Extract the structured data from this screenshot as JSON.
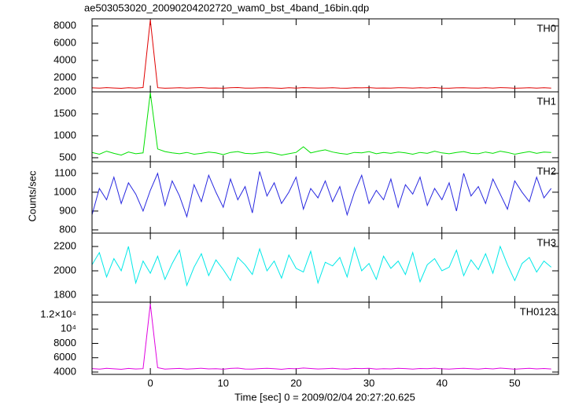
{
  "title": "ae503053020_20090204202720_wam0_bst_4band_16bin.qdp",
  "x_label": "Time [sec] 0 = 2009/02/04 20:27:20.625",
  "y_label": "Counts/sec",
  "chart_data": [
    {
      "type": "line",
      "xlim": [
        -8,
        56
      ],
      "xticks": [
        0,
        10,
        20,
        30,
        40,
        50
      ],
      "ylim": [
        360,
        8820
      ],
      "yticks": [
        2000,
        4000,
        6000,
        8000
      ],
      "x": [
        -8,
        -7,
        -6,
        -5,
        -4,
        -3,
        -2,
        -1,
        0,
        1,
        2,
        3,
        4,
        5,
        6,
        7,
        8,
        9,
        10,
        11,
        12,
        13,
        14,
        15,
        16,
        17,
        18,
        19,
        20,
        21,
        22,
        23,
        24,
        25,
        26,
        27,
        28,
        29,
        30,
        31,
        32,
        33,
        34,
        35,
        36,
        37,
        38,
        39,
        40,
        41,
        42,
        43,
        44,
        45,
        46,
        47,
        48,
        49,
        50,
        51,
        52,
        53,
        54,
        55
      ],
      "series": [
        {
          "name": "TH0",
          "color": "#e00000",
          "values": [
            820,
            790,
            850,
            810,
            770,
            830,
            800,
            860,
            8700,
            840,
            780,
            810,
            830,
            790,
            820,
            850,
            800,
            810,
            780,
            830,
            860,
            800,
            790,
            820,
            840,
            810,
            770,
            830,
            800,
            850,
            820,
            790,
            810,
            840,
            800,
            780,
            830,
            820,
            850,
            790,
            810,
            800,
            840,
            820,
            790,
            830,
            810,
            860,
            800,
            780,
            820,
            840,
            810,
            790,
            830,
            800,
            850,
            820,
            780,
            810,
            840,
            800,
            830,
            790
          ]
        }
      ]
    },
    {
      "type": "line",
      "xlim": [
        -8,
        56
      ],
      "xticks": [
        0,
        10,
        20,
        30,
        40,
        50
      ],
      "ylim": [
        410,
        2000
      ],
      "yticks": [
        500,
        1000,
        1500,
        2000
      ],
      "x": [
        -8,
        -7,
        -6,
        -5,
        -4,
        -3,
        -2,
        -1,
        0,
        1,
        2,
        3,
        4,
        5,
        6,
        7,
        8,
        9,
        10,
        11,
        12,
        13,
        14,
        15,
        16,
        17,
        18,
        19,
        20,
        21,
        22,
        23,
        24,
        25,
        26,
        27,
        28,
        29,
        30,
        31,
        32,
        33,
        34,
        35,
        36,
        37,
        38,
        39,
        40,
        41,
        42,
        43,
        44,
        45,
        46,
        47,
        48,
        49,
        50,
        51,
        52,
        53,
        54,
        55
      ],
      "series": [
        {
          "name": "TH1",
          "color": "#00e000",
          "values": [
            620,
            580,
            650,
            600,
            560,
            630,
            590,
            610,
            1980,
            700,
            640,
            610,
            590,
            620,
            580,
            600,
            630,
            610,
            570,
            620,
            640,
            600,
            590,
            610,
            630,
            600,
            560,
            590,
            620,
            750,
            610,
            650,
            680,
            630,
            600,
            580,
            620,
            610,
            640,
            590,
            620,
            600,
            630,
            610,
            580,
            620,
            600,
            650,
            610,
            590,
            620,
            640,
            600,
            590,
            630,
            600,
            650,
            620,
            580,
            610,
            640,
            600,
            630,
            620
          ]
        }
      ]
    },
    {
      "type": "line",
      "xlim": [
        -8,
        56
      ],
      "xticks": [
        0,
        10,
        20,
        30,
        40,
        50
      ],
      "ylim": [
        783,
        1162
      ],
      "yticks": [
        800,
        900,
        1000,
        1100
      ],
      "x": [
        -8,
        -7,
        -6,
        -5,
        -4,
        -3,
        -2,
        -1,
        0,
        1,
        2,
        3,
        4,
        5,
        6,
        7,
        8,
        9,
        10,
        11,
        12,
        13,
        14,
        15,
        16,
        17,
        18,
        19,
        20,
        21,
        22,
        23,
        24,
        25,
        26,
        27,
        28,
        29,
        30,
        31,
        32,
        33,
        34,
        35,
        36,
        37,
        38,
        39,
        40,
        41,
        42,
        43,
        44,
        45,
        46,
        47,
        48,
        49,
        50,
        51,
        52,
        53,
        54,
        55
      ],
      "series": [
        {
          "name": "TH2",
          "color": "#2828e0",
          "values": [
            880,
            1020,
            960,
            1080,
            940,
            1050,
            990,
            900,
            1010,
            1100,
            930,
            1060,
            980,
            870,
            1040,
            950,
            1090,
            1000,
            920,
            1070,
            960,
            1030,
            890,
            1110,
            980,
            1050,
            940,
            1000,
            1080,
            910,
            1020,
            970,
            1060,
            950,
            1030,
            880,
            1000,
            1090,
            940,
            1010,
            960,
            1070,
            920,
            1040,
            990,
            1080,
            930,
            1020,
            960,
            1050,
            900,
            1100,
            980,
            1030,
            940,
            1070,
            990,
            910,
            1060,
            1000,
            950,
            1080,
            970,
            1020
          ]
        }
      ]
    },
    {
      "type": "line",
      "xlim": [
        -8,
        56
      ],
      "xticks": [
        0,
        10,
        20,
        30,
        40,
        50
      ],
      "ylim": [
        1742,
        2310
      ],
      "yticks": [
        1800,
        2000,
        2200
      ],
      "x": [
        -8,
        -7,
        -6,
        -5,
        -4,
        -3,
        -2,
        -1,
        0,
        1,
        2,
        3,
        4,
        5,
        6,
        7,
        8,
        9,
        10,
        11,
        12,
        13,
        14,
        15,
        16,
        17,
        18,
        19,
        20,
        21,
        22,
        23,
        24,
        25,
        26,
        27,
        28,
        29,
        30,
        31,
        32,
        33,
        34,
        35,
        36,
        37,
        38,
        39,
        40,
        41,
        42,
        43,
        44,
        45,
        46,
        47,
        48,
        49,
        50,
        51,
        52,
        53,
        54,
        55
      ],
      "series": [
        {
          "name": "TH3",
          "color": "#00e8e8",
          "values": [
            2050,
            2150,
            1950,
            2100,
            2000,
            2200,
            1900,
            2080,
            1980,
            2120,
            1930,
            2060,
            2170,
            1880,
            2030,
            2140,
            1960,
            2090,
            2010,
            1920,
            2110,
            2050,
            1970,
            2180,
            2000,
            2080,
            1940,
            2130,
            2020,
            1990,
            2160,
            1900,
            2070,
            2040,
            2110,
            1950,
            2190,
            2000,
            2060,
            1930,
            2120,
            2020,
            2080,
            1970,
            2150,
            1910,
            2050,
            2100,
            2000,
            2030,
            2170,
            1960,
            2090,
            2010,
            2140,
            1980,
            2200,
            2050,
            1920,
            2060,
            2110,
            1990,
            2080,
            2030
          ]
        }
      ]
    },
    {
      "type": "line",
      "xlim": [
        -8,
        56
      ],
      "xticks": [
        0,
        10,
        20,
        30,
        40,
        50
      ],
      "ylim": [
        3671,
        13753
      ],
      "yticks": [
        4000,
        6000,
        8000,
        {
          "value": 10000,
          "label": "10⁴"
        },
        {
          "value": 12000,
          "label": "1.2×10⁴"
        }
      ],
      "x": [
        -8,
        -7,
        -6,
        -5,
        -4,
        -3,
        -2,
        -1,
        0,
        1,
        2,
        3,
        4,
        5,
        6,
        7,
        8,
        9,
        10,
        11,
        12,
        13,
        14,
        15,
        16,
        17,
        18,
        19,
        20,
        21,
        22,
        23,
        24,
        25,
        26,
        27,
        28,
        29,
        30,
        31,
        32,
        33,
        34,
        35,
        36,
        37,
        38,
        39,
        40,
        41,
        42,
        43,
        44,
        45,
        46,
        47,
        48,
        49,
        50,
        51,
        52,
        53,
        54,
        55
      ],
      "series": [
        {
          "name": "TH0123",
          "color": "#e000e0",
          "values": [
            4480,
            4400,
            4520,
            4450,
            4380,
            4500,
            4430,
            4470,
            13500,
            4600,
            4420,
            4460,
            4500,
            4410,
            4470,
            4530,
            4440,
            4460,
            4390,
            4500,
            4550,
            4430,
            4420,
            4480,
            4510,
            4460,
            4380,
            4490,
            4450,
            4560,
            4490,
            4430,
            4470,
            4520,
            4440,
            4400,
            4500,
            4480,
            4530,
            4410,
            4460,
            4440,
            4510,
            4480,
            4420,
            4490,
            4470,
            4540,
            4450,
            4400,
            4480,
            4510,
            4460,
            4420,
            4500,
            4440,
            4550,
            4480,
            4390,
            4460,
            4520,
            4440,
            4490,
            4430
          ]
        }
      ]
    }
  ]
}
